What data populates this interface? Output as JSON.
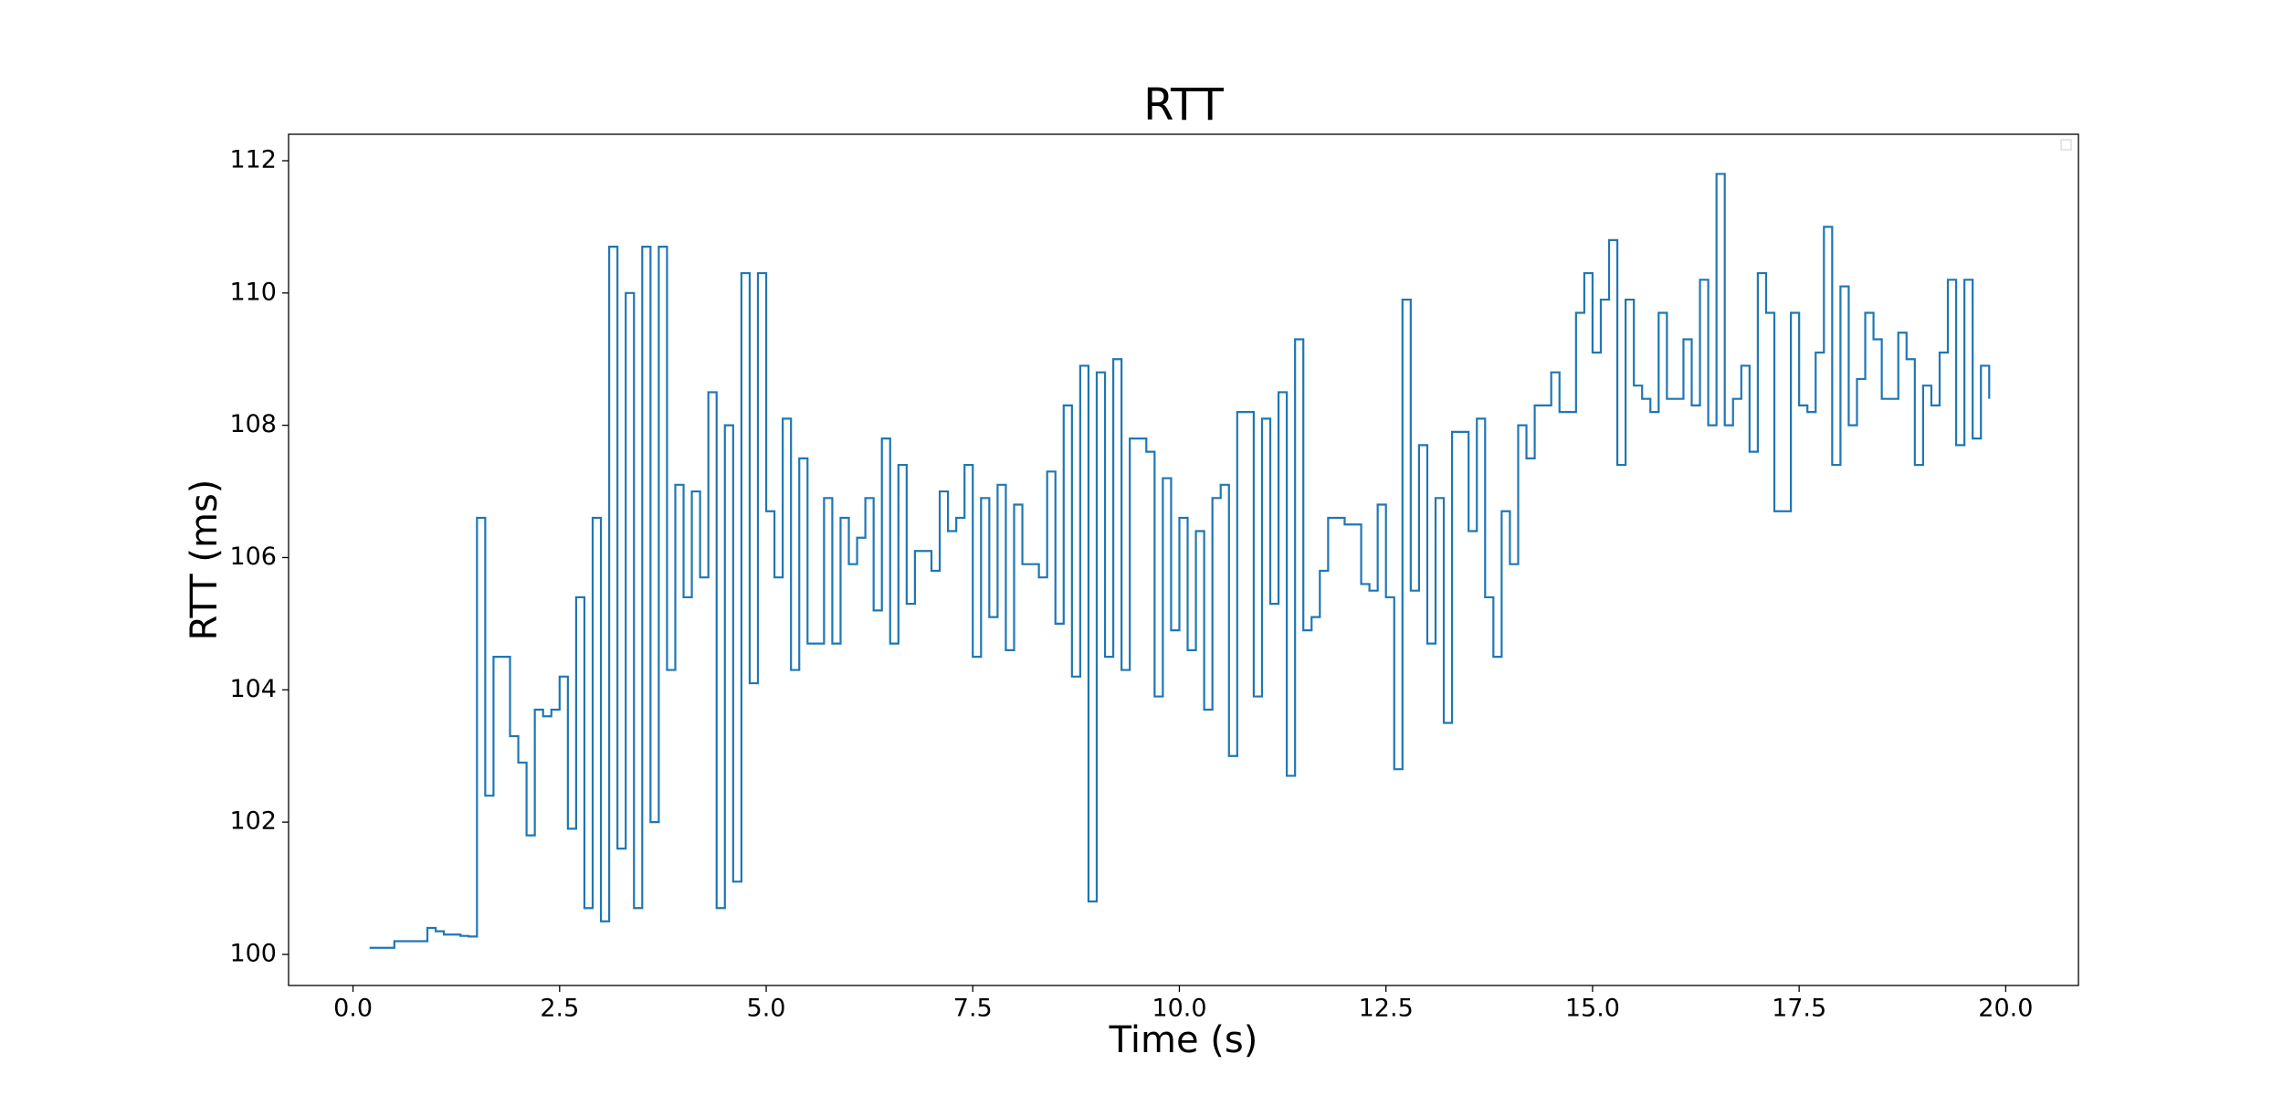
{
  "chart_data": {
    "type": "step",
    "title": "RTT",
    "xlabel": "Time (s)",
    "ylabel": "RTT (ms)",
    "xlim": [
      -0.78,
      20.88
    ],
    "ylim": [
      99.53,
      112.4
    ],
    "xticks": [
      {
        "value": 0,
        "label": "0.0"
      },
      {
        "value": 2.5,
        "label": "2.5"
      },
      {
        "value": 5,
        "label": "5.0"
      },
      {
        "value": 7.5,
        "label": "7.5"
      },
      {
        "value": 10,
        "label": "10.0"
      },
      {
        "value": 12.5,
        "label": "12.5"
      },
      {
        "value": 15,
        "label": "15.0"
      },
      {
        "value": 17.5,
        "label": "17.5"
      },
      {
        "value": 20,
        "label": "20.0"
      }
    ],
    "yticks": [
      100,
      102,
      104,
      106,
      108,
      110,
      112
    ],
    "grid": false,
    "series": [
      {
        "color": "#1f77b4",
        "x": [
          0.2,
          0.3,
          0.4,
          0.5,
          0.6,
          0.7,
          0.8,
          0.9,
          1.0,
          1.1,
          1.2,
          1.3,
          1.4,
          1.5,
          1.6,
          1.7,
          1.8,
          1.9,
          2.0,
          2.1,
          2.2,
          2.3,
          2.4,
          2.5,
          2.6,
          2.7,
          2.8,
          2.9,
          3.0,
          3.1,
          3.2,
          3.3,
          3.4,
          3.5,
          3.6,
          3.7,
          3.8,
          3.9,
          4.0,
          4.1,
          4.2,
          4.3,
          4.4,
          4.5,
          4.6,
          4.7,
          4.8,
          4.9,
          5.0,
          5.1,
          5.2,
          5.3,
          5.4,
          5.5,
          5.7,
          5.8,
          5.9,
          6.0,
          6.1,
          6.2,
          6.3,
          6.4,
          6.5,
          6.6,
          6.7,
          6.8,
          7.0,
          7.1,
          7.2,
          7.3,
          7.4,
          7.5,
          7.6,
          7.7,
          7.8,
          7.9,
          8.0,
          8.1,
          8.3,
          8.4,
          8.5,
          8.6,
          8.7,
          8.8,
          8.9,
          9.0,
          9.1,
          9.2,
          9.3,
          9.4,
          9.6,
          9.7,
          9.8,
          9.9,
          10.0,
          10.1,
          10.2,
          10.3,
          10.4,
          10.5,
          10.6,
          10.7,
          10.9,
          11.0,
          11.1,
          11.2,
          11.3,
          11.4,
          11.5,
          11.6,
          11.7,
          11.8,
          11.9,
          12.0,
          12.2,
          12.3,
          12.4,
          12.5,
          12.6,
          12.7,
          12.8,
          12.9,
          13.0,
          13.1,
          13.2,
          13.3,
          13.5,
          13.6,
          13.7,
          13.8,
          13.9,
          14.0,
          14.1,
          14.2,
          14.3,
          14.4,
          14.5,
          14.6,
          14.8,
          14.9,
          15.0,
          15.1,
          15.2,
          15.3,
          15.4,
          15.5,
          15.6,
          15.7,
          15.8,
          15.9,
          16.1,
          16.2,
          16.3,
          16.4,
          16.5,
          16.6,
          16.7,
          16.8,
          16.9,
          17.0,
          17.1,
          17.2,
          17.4,
          17.5,
          17.6,
          17.7,
          17.8,
          17.9,
          18.0,
          18.1,
          18.2,
          18.3,
          18.4,
          18.5,
          18.7,
          18.8,
          18.9,
          19.0,
          19.1,
          19.2,
          19.3,
          19.4,
          19.5,
          19.6,
          19.7,
          19.8
        ],
        "values": [
          100.1,
          100.1,
          100.1,
          100.2,
          100.2,
          100.2,
          100.2,
          100.4,
          100.35,
          100.3,
          100.3,
          100.28,
          100.27,
          106.6,
          102.4,
          104.5,
          104.5,
          103.3,
          102.9,
          101.8,
          103.7,
          103.6,
          103.7,
          104.2,
          101.9,
          105.4,
          100.7,
          106.6,
          100.5,
          110.7,
          101.6,
          110.0,
          100.7,
          110.7,
          102.0,
          110.7,
          104.3,
          107.1,
          105.4,
          107.0,
          105.7,
          108.5,
          100.7,
          108.0,
          101.1,
          110.3,
          104.1,
          110.3,
          106.7,
          105.7,
          108.1,
          104.3,
          107.5,
          104.7,
          106.9,
          104.7,
          106.6,
          105.9,
          106.3,
          106.9,
          105.2,
          107.8,
          104.7,
          107.4,
          105.3,
          106.1,
          105.8,
          107.0,
          106.4,
          106.6,
          107.4,
          104.5,
          106.9,
          105.1,
          107.1,
          104.6,
          106.8,
          105.9,
          105.7,
          107.3,
          105.0,
          108.3,
          104.2,
          108.9,
          100.8,
          108.8,
          104.5,
          109.0,
          104.3,
          107.8,
          107.6,
          103.9,
          107.2,
          104.9,
          106.6,
          104.6,
          106.4,
          103.7,
          106.9,
          107.1,
          103.0,
          108.2,
          103.9,
          108.1,
          105.3,
          108.5,
          102.7,
          109.3,
          104.9,
          105.1,
          105.8,
          106.6,
          106.6,
          106.5,
          105.6,
          105.5,
          106.8,
          105.4,
          102.8,
          109.9,
          105.5,
          107.7,
          104.7,
          106.9,
          103.5,
          107.9,
          106.4,
          108.1,
          105.4,
          104.5,
          106.7,
          105.9,
          108.0,
          107.5,
          108.3,
          108.3,
          108.8,
          108.2,
          109.7,
          110.3,
          109.1,
          109.9,
          110.8,
          107.4,
          109.9,
          108.6,
          108.4,
          108.2,
          109.7,
          108.4,
          109.3,
          108.3,
          110.2,
          108.0,
          111.8,
          108.0,
          108.4,
          108.9,
          107.6,
          110.3,
          109.7,
          106.7,
          109.7,
          108.3,
          108.2,
          109.1,
          111.0,
          107.4,
          110.1,
          108.0,
          108.7,
          109.7,
          109.3,
          108.4,
          109.4,
          109.0,
          107.4,
          108.6,
          108.3,
          109.1,
          110.2,
          107.7,
          110.2,
          107.8,
          108.9,
          108.4
        ]
      }
    ]
  }
}
